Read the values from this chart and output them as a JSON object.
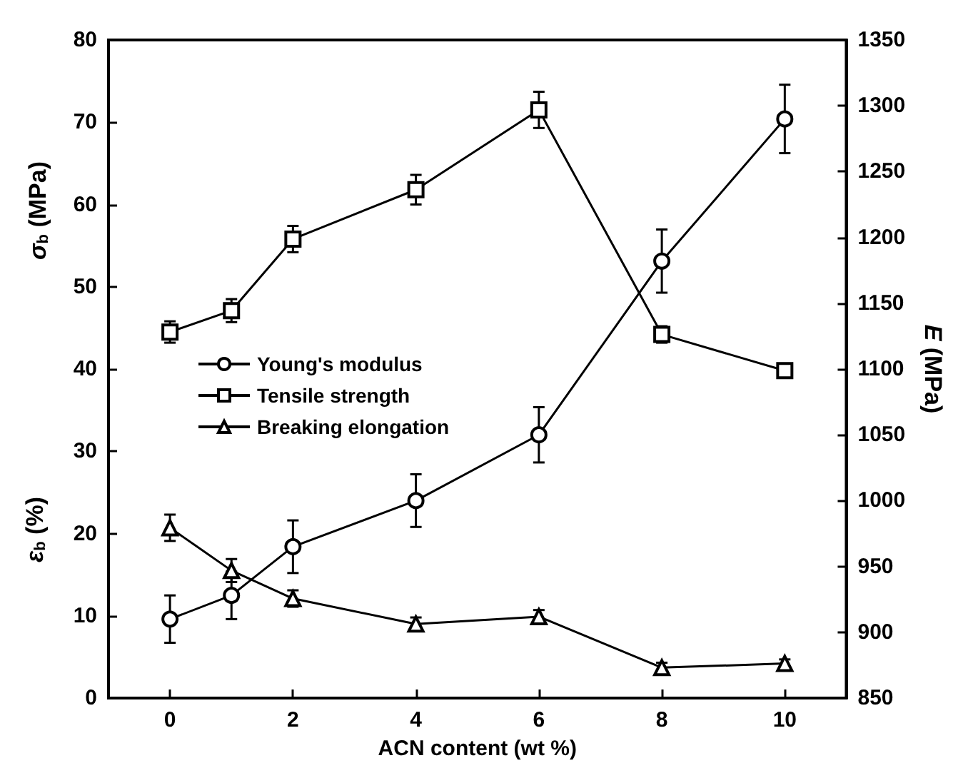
{
  "chart_data": {
    "type": "line",
    "xlabel": "ACN content (wt %)",
    "ylabel": "σ$_{b}$ (MPa)",
    "y2label": "E (MPa)",
    "annotations": [
      "ε$_{b}$ (%)"
    ],
    "x": [
      0,
      1,
      2,
      4,
      6,
      8,
      10
    ],
    "xlim": [
      -1,
      11
    ],
    "xticks": [
      0,
      2,
      4,
      6,
      8,
      10
    ],
    "ylim": [
      0,
      80
    ],
    "yticks": [
      0,
      10,
      20,
      30,
      40,
      50,
      60,
      70,
      80
    ],
    "y2lim": [
      850,
      1350
    ],
    "y2ticks": [
      850,
      900,
      950,
      1000,
      1050,
      1100,
      1150,
      1200,
      1250,
      1300,
      1350
    ],
    "legend": "left",
    "grid": false,
    "line_style": "solid",
    "series": [
      {
        "name": "Young's modulus",
        "color": "#000000",
        "marker": "circle",
        "axis": "y2",
        "values": [
          910,
          928,
          965,
          1000,
          1050,
          1182,
          1290
        ],
        "errors": [
          18,
          18,
          20,
          20,
          21,
          24,
          26
        ]
      },
      {
        "name": "Tensile strength",
        "color": "#000000",
        "marker": "square",
        "values": [
          44.5,
          47.1,
          55.8,
          61.8,
          71.5,
          44.2,
          39.8
        ],
        "errors": [
          1.3,
          1.4,
          1.6,
          1.8,
          2.2,
          1.0,
          0.8
        ]
      },
      {
        "name": "Breaking elongation",
        "color": "#000000",
        "marker": "triangle",
        "values": [
          20.7,
          15.5,
          12.1,
          9.0,
          9.9,
          3.7,
          4.2
        ],
        "errors": [
          1.6,
          1.4,
          1.0,
          0.8,
          0.8,
          0.6,
          0.5
        ]
      }
    ]
  }
}
